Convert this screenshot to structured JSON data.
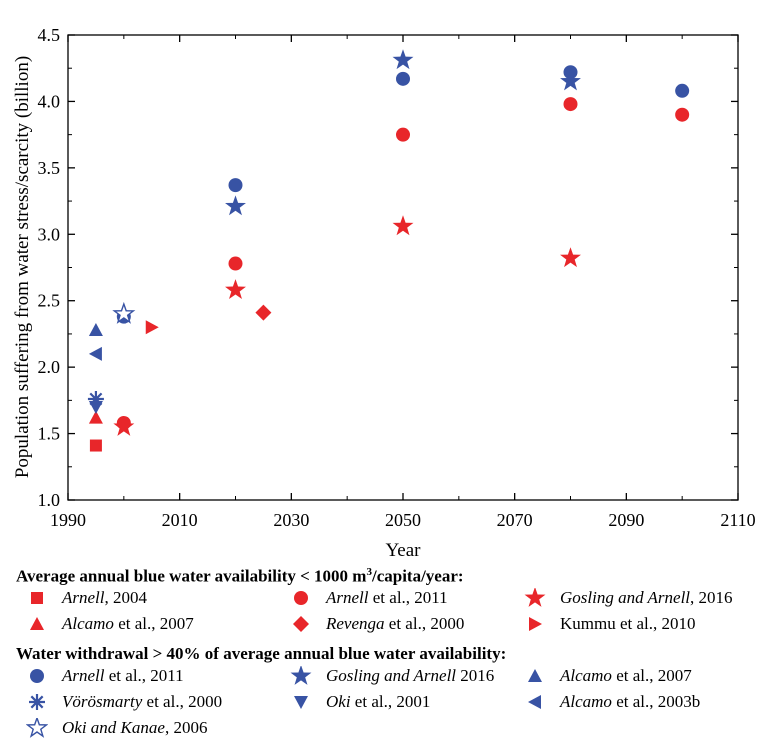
{
  "chart_data": {
    "type": "scatter",
    "xlabel": "Year",
    "ylabel": "Population suffering from water stress/scarcity (billion)",
    "xlim": [
      1990,
      2110
    ],
    "ylim": [
      1.0,
      4.5
    ],
    "x_ticks": [
      "1990",
      "2010",
      "2030",
      "2050",
      "2070",
      "2090",
      "2110"
    ],
    "y_ticks": [
      "1.0",
      "1.5",
      "2.0",
      "2.5",
      "3.0",
      "3.5",
      "4.0",
      "4.5"
    ],
    "grid": false,
    "legend_position": "bottom",
    "colors": {
      "red": "#e8262a",
      "blue": "#3853a4"
    },
    "groups": [
      {
        "heading_pre": "Average annual blue water availability < 1000 m",
        "heading_sup": "3",
        "heading_post": "/capita/year:",
        "series": [
          {
            "marker": "square",
            "color": "red",
            "author": "Arnell",
            "rest": ", 2004",
            "points": [
              [
                1995,
                1.41
              ]
            ]
          },
          {
            "marker": "circle",
            "color": "red",
            "author": "Arnell",
            "rest": " et al., 2011",
            "points": [
              [
                2000,
                1.58
              ],
              [
                2020,
                2.78
              ],
              [
                2050,
                3.75
              ],
              [
                2080,
                3.98
              ],
              [
                2100,
                3.9
              ]
            ]
          },
          {
            "marker": "star",
            "color": "red",
            "author": "Gosling and Arnell",
            "rest": ", 2016",
            "points": [
              [
                2000,
                1.55
              ],
              [
                2020,
                2.58
              ],
              [
                2050,
                3.06
              ],
              [
                2080,
                2.82
              ]
            ]
          },
          {
            "marker": "triangle-up",
            "color": "red",
            "author": "Alcamo",
            "rest": " et al., 2007",
            "points": [
              [
                1995,
                1.62
              ]
            ]
          },
          {
            "marker": "diamond",
            "color": "red",
            "author": "Revenga",
            "rest": " et al., 2000",
            "points": [
              [
                2025,
                2.41
              ]
            ]
          },
          {
            "marker": "triangle-right",
            "color": "red",
            "author": "",
            "rest": "Kummu et al., 2010",
            "points": [
              [
                2005,
                2.3
              ]
            ]
          }
        ]
      },
      {
        "heading_pre": "Water withdrawal > 40% of average annual blue water availability:",
        "heading_sup": "",
        "heading_post": "",
        "series": [
          {
            "marker": "circle",
            "color": "blue",
            "author": "Arnell",
            "rest": " et al., 2011",
            "points": [
              [
                2000,
                2.38
              ],
              [
                2020,
                3.37
              ],
              [
                2050,
                4.17
              ],
              [
                2080,
                4.22
              ],
              [
                2100,
                4.08
              ]
            ]
          },
          {
            "marker": "star",
            "color": "blue",
            "author": "Gosling and Arnell",
            "rest": " 2016",
            "points": [
              [
                2020,
                3.21
              ],
              [
                2050,
                4.31
              ],
              [
                2080,
                4.15
              ]
            ]
          },
          {
            "marker": "triangle-up",
            "color": "blue",
            "author": "Alcamo",
            "rest": " et al., 2007",
            "points": [
              [
                1995,
                2.28
              ]
            ]
          },
          {
            "marker": "asterisk",
            "color": "blue",
            "author": "Vörösmarty",
            "rest": " et al., 2000",
            "points": [
              [
                1995,
                1.76
              ]
            ]
          },
          {
            "marker": "triangle-down",
            "color": "blue",
            "author": "Oki",
            "rest": " et al., 2001",
            "points": [
              [
                1995,
                1.7
              ]
            ]
          },
          {
            "marker": "triangle-left",
            "color": "blue",
            "author": "Alcamo",
            "rest": " et al., 2003b",
            "points": [
              [
                1995,
                2.1
              ]
            ]
          },
          {
            "marker": "star-open",
            "color": "blue",
            "author": "Oki and Kanae",
            "rest": ", 2006",
            "points": [
              [
                2000,
                2.4
              ]
            ]
          }
        ]
      }
    ]
  }
}
